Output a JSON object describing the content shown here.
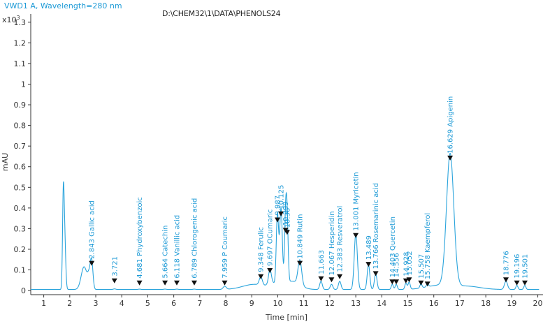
{
  "header": {
    "signal_title": "VWD1 A, Wavelength=280 nm",
    "file_path": "D:\\CHEM32\\1\\DATA\\PHENOLS24"
  },
  "colors": {
    "trace": "#2aa4dc",
    "text": "#1d9ad6",
    "axis": "#333333",
    "marker": "#111111"
  },
  "chart_data": {
    "type": "line",
    "title": "VWD1 A, Wavelength=280 nm",
    "xlabel": "Time [min]",
    "ylabel": "mAU",
    "y_multiplier_label": "x10",
    "y_exponent_label": "3",
    "xlim": [
      0.5,
      20.2
    ],
    "ylim": [
      -0.02,
      1.34
    ],
    "x_ticks": [
      1,
      2,
      3,
      4,
      5,
      6,
      7,
      8,
      9,
      10,
      11,
      12,
      13,
      14,
      15,
      16,
      17,
      18,
      19,
      20
    ],
    "y_ticks": [
      0,
      0.1,
      0.2,
      0.3,
      0.4,
      0.5,
      0.6,
      0.7,
      0.8,
      0.9,
      1,
      1.1,
      1.2,
      1.3
    ],
    "y_tick_labels": [
      "0",
      "0.1",
      "0.2",
      "0.3",
      "0.4",
      "0.5",
      "0.6",
      "0.7",
      "0.8",
      "0.9",
      "1",
      "1.1",
      "1.2",
      "1.3"
    ],
    "baseline": 0.005,
    "shape_peaks": [
      {
        "t": 1.75,
        "h": 0.38,
        "w": 0.03
      },
      {
        "t": 1.8,
        "h": 0.27,
        "w": 0.04
      },
      {
        "t": 2.55,
        "h": 0.11,
        "w": 0.11
      },
      {
        "t": 2.75,
        "h": 0.06,
        "w": 0.06
      },
      {
        "t": 9.1,
        "h": 0.025,
        "w": 0.45
      },
      {
        "t": 9.75,
        "h": 0.03,
        "w": 0.12
      },
      {
        "t": 10.55,
        "h": 0.04,
        "w": 0.3
      },
      {
        "t": 16.2,
        "h": 0.02,
        "w": 0.5
      },
      {
        "t": 17.3,
        "h": 0.015,
        "w": 0.5
      }
    ],
    "peaks": [
      {
        "time": 2.843,
        "height": 0.13,
        "label": "2.843 Gallic acid",
        "marker_y": 0.12
      },
      {
        "time": 3.721,
        "height": 0.003,
        "label": "3.721",
        "marker_y": 0.035
      },
      {
        "time": 4.681,
        "height": 0.002,
        "label": "4.681 Phydroxybenzoic",
        "marker_y": 0.025
      },
      {
        "time": 5.664,
        "height": 0.002,
        "label": "5.664 Catechin",
        "marker_y": 0.025
      },
      {
        "time": 6.118,
        "height": 0.002,
        "label": "6.118 Vanillic acid",
        "marker_y": 0.025
      },
      {
        "time": 6.789,
        "height": 0.002,
        "label": "6.789 Chlorogenic acid",
        "marker_y": 0.025
      },
      {
        "time": 7.959,
        "height": 0.015,
        "label": "7.959 P Coumaric",
        "marker_y": 0.025
      },
      {
        "time": 9.348,
        "height": 0.04,
        "label": "9.348 Ferulic",
        "marker_y": 0.055
      },
      {
        "time": 9.697,
        "height": 0.06,
        "label": "9.697 OCumaric",
        "marker_y": 0.085
      },
      {
        "time": 9.987,
        "height": 0.35,
        "label": "9.987",
        "marker_y": 0.33
      },
      {
        "time": 10.125,
        "height": 0.375,
        "label": "10.125",
        "marker_y": 0.36
      },
      {
        "time": 10.299,
        "height": 0.3,
        "label": "10.299",
        "marker_y": 0.28
      },
      {
        "time": 10.36,
        "height": 0.285,
        "label": "10.36",
        "marker_y": 0.27
      },
      {
        "time": 10.849,
        "height": 0.12,
        "label": "10.849 Rutin",
        "marker_y": 0.12
      },
      {
        "time": 11.663,
        "height": 0.04,
        "label": "11.663",
        "marker_y": 0.045
      },
      {
        "time": 12.067,
        "height": 0.025,
        "label": "12.067 Hesperidin",
        "marker_y": 0.04
      },
      {
        "time": 12.383,
        "height": 0.04,
        "label": "12.383 Resveratrol",
        "marker_y": 0.055
      },
      {
        "time": 13.001,
        "height": 0.27,
        "label": "13.001 Myricetin",
        "marker_y": 0.255
      },
      {
        "time": 13.489,
        "height": 0.12,
        "label": "13.489",
        "marker_y": 0.115
      },
      {
        "time": 13.766,
        "height": 0.075,
        "label": "13.766 Rosemarinic acid",
        "marker_y": 0.07
      },
      {
        "time": 14.403,
        "height": 0.025,
        "label": "14.403 Quercetin",
        "marker_y": 0.03
      },
      {
        "time": 14.556,
        "height": 0.025,
        "label": "14.556",
        "marker_y": 0.03
      },
      {
        "time": 14.928,
        "height": 0.03,
        "label": "14.928",
        "marker_y": 0.035
      },
      {
        "time": 15.052,
        "height": 0.035,
        "label": "15.052",
        "marker_y": 0.04
      },
      {
        "time": 15.507,
        "height": 0.02,
        "label": "15.507",
        "marker_y": 0.025
      },
      {
        "time": 15.758,
        "height": 0.015,
        "label": "15.758 Kaempferol",
        "marker_y": 0.02
      },
      {
        "time": 16.629,
        "height": 0.64,
        "label": "16.629 Apigenin",
        "marker_y": 0.63
      },
      {
        "time": 18.776,
        "height": 0.04,
        "label": "18.776",
        "marker_y": 0.04
      },
      {
        "time": 19.196,
        "height": 0.02,
        "label": "19.196",
        "marker_y": 0.025
      },
      {
        "time": 19.501,
        "height": 0.02,
        "label": "19.501",
        "marker_y": 0.025
      }
    ],
    "peak_widths": {
      "2.843": 0.05,
      "3.721": 0.05,
      "4.681": 0.05,
      "5.664": 0.05,
      "6.118": 0.05,
      "6.789": 0.05,
      "7.959": 0.06,
      "9.348": 0.06,
      "9.697": 0.05,
      "9.987": 0.045,
      "10.125": 0.05,
      "10.299": 0.04,
      "10.36": 0.04,
      "10.849": 0.07,
      "11.663": 0.05,
      "12.067": 0.05,
      "12.383": 0.05,
      "13.001": 0.06,
      "13.489": 0.05,
      "13.766": 0.05,
      "14.403": 0.04,
      "14.556": 0.04,
      "14.928": 0.04,
      "15.052": 0.04,
      "15.507": 0.04,
      "15.758": 0.04,
      "16.629": 0.14,
      "18.776": 0.06,
      "19.196": 0.04,
      "19.501": 0.04
    }
  }
}
